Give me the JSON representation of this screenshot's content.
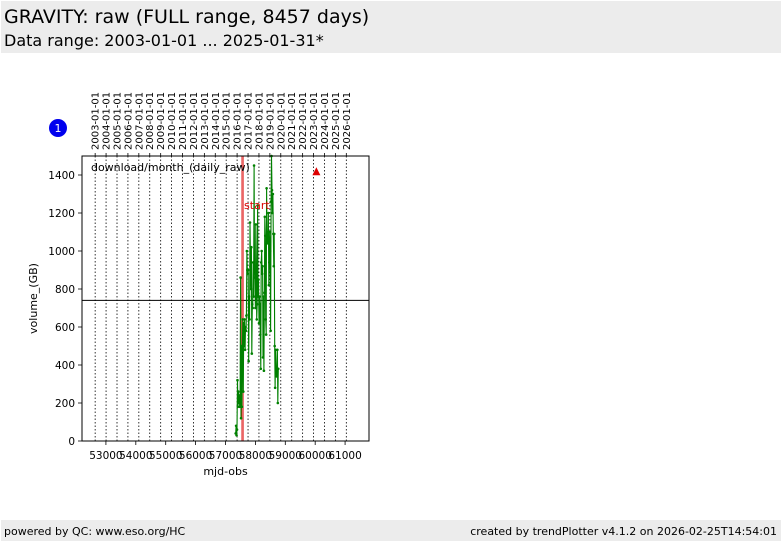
{
  "header": {
    "title": "GRAVITY: raw (FULL range, 8457 days)",
    "subtitle": "Data range: 2003-01-01 ... 2025-01-31*"
  },
  "footer": {
    "left": "powered by QC: www.eso.org/HC",
    "right": "created by trendPlotter v4.1.2 on 2026-02-25T14:54:01"
  },
  "badge": {
    "label": "1",
    "color": "#0000ee"
  },
  "chart_data": {
    "type": "line",
    "title": "",
    "xlabel": "mjd-obs",
    "ylabel": "volume_(GB)",
    "xlim": [
      52200,
      61800
    ],
    "ylim": [
      0,
      1500
    ],
    "x_ticks": [
      53000,
      54000,
      55000,
      56000,
      57000,
      58000,
      59000,
      60000,
      61000
    ],
    "x_tick_labels": [
      "53000",
      "54000",
      "55000",
      "56000",
      "57000",
      "58000",
      "59000",
      "60000",
      "61000"
    ],
    "y_ticks": [
      0,
      200,
      400,
      600,
      800,
      1000,
      1200,
      1400
    ],
    "y_tick_labels": [
      "0",
      "200",
      "400",
      "600",
      "800",
      "1000",
      "1200",
      "1400"
    ],
    "top_axis": {
      "dates": [
        "2003-01-01",
        "2004-01-01",
        "2005-01-01",
        "2006-01-01",
        "2007-01-01",
        "2008-01-01",
        "2009-01-01",
        "2010-01-01",
        "2011-01-01",
        "2012-01-01",
        "2013-01-01",
        "2014-01-01",
        "2015-01-01",
        "2016-01-01",
        "2017-01-01",
        "2018-01-01",
        "2019-01-01",
        "2020-01-01",
        "2021-01-01",
        "2022-01-01",
        "2023-01-01",
        "2024-01-01",
        "2025-01-01",
        "2026-01-01"
      ],
      "mjd": [
        52640,
        53005,
        53371,
        53736,
        54101,
        54466,
        54832,
        55197,
        55562,
        55927,
        56293,
        56658,
        57023,
        57388,
        57754,
        58119,
        58484,
        58849,
        59215,
        59580,
        59945,
        60310,
        60676,
        61041
      ]
    },
    "grid": "vertical dotted at year boundaries",
    "series": [
      {
        "name": "download/month_(daily_raw)",
        "color": "#008000",
        "points": [
          [
            57340,
            40
          ],
          [
            57355,
            80
          ],
          [
            57370,
            30
          ],
          [
            57385,
            60
          ],
          [
            57400,
            320
          ],
          [
            57415,
            180
          ],
          [
            57430,
            260
          ],
          [
            57445,
            200
          ],
          [
            57460,
            240
          ],
          [
            57475,
            180
          ],
          [
            57490,
            200
          ],
          [
            57505,
            860
          ],
          [
            57520,
            120
          ],
          [
            57535,
            500
          ],
          [
            57550,
            180
          ],
          [
            57565,
            480
          ],
          [
            57580,
            640
          ],
          [
            57595,
            260
          ],
          [
            57610,
            620
          ],
          [
            57625,
            500
          ],
          [
            57640,
            640
          ],
          [
            57655,
            480
          ],
          [
            57670,
            600
          ],
          [
            57685,
            580
          ],
          [
            57700,
            660
          ],
          [
            57715,
            1000
          ],
          [
            57730,
            900
          ],
          [
            57745,
            880
          ],
          [
            57760,
            900
          ],
          [
            57775,
            420
          ],
          [
            57790,
            760
          ],
          [
            57805,
            640
          ],
          [
            57820,
            1150
          ],
          [
            57835,
            920
          ],
          [
            57850,
            800
          ],
          [
            57865,
            1020
          ],
          [
            57880,
            460
          ],
          [
            57895,
            720
          ],
          [
            57910,
            700
          ],
          [
            57925,
            940
          ],
          [
            57940,
            760
          ],
          [
            57955,
            1450
          ],
          [
            57970,
            920
          ],
          [
            57985,
            860
          ],
          [
            58000,
            700
          ],
          [
            58015,
            1140
          ],
          [
            58030,
            920
          ],
          [
            58045,
            640
          ],
          [
            58060,
            720
          ],
          [
            58075,
            1240
          ],
          [
            58090,
            760
          ],
          [
            58105,
            850
          ],
          [
            58120,
            620
          ],
          [
            58135,
            760
          ],
          [
            58150,
            720
          ],
          [
            58165,
            560
          ],
          [
            58180,
            380
          ],
          [
            58195,
            940
          ],
          [
            58210,
            1000
          ],
          [
            58225,
            880
          ],
          [
            58240,
            920
          ],
          [
            58255,
            440
          ],
          [
            58270,
            760
          ],
          [
            58285,
            370
          ],
          [
            58300,
            780
          ],
          [
            58315,
            1180
          ],
          [
            58330,
            1080
          ],
          [
            58345,
            640
          ],
          [
            58360,
            560
          ],
          [
            58375,
            1330
          ],
          [
            58390,
            1040
          ],
          [
            58405,
            1100
          ],
          [
            58420,
            1050
          ],
          [
            58435,
            1200
          ],
          [
            58450,
            820
          ],
          [
            58465,
            940
          ],
          [
            58480,
            1100
          ],
          [
            58495,
            1000
          ],
          [
            58510,
            580
          ],
          [
            58525,
            1260
          ],
          [
            58540,
            1500
          ],
          [
            58555,
            1320
          ],
          [
            58570,
            1200
          ],
          [
            58585,
            1300
          ],
          [
            58600,
            1090
          ],
          [
            58615,
            920
          ],
          [
            58630,
            1090
          ],
          [
            58645,
            500
          ],
          [
            58660,
            280
          ],
          [
            58675,
            480
          ],
          [
            58690,
            380
          ],
          [
            58705,
            340
          ],
          [
            58720,
            360
          ],
          [
            58735,
            480
          ],
          [
            58750,
            200
          ],
          [
            58765,
            380
          ]
        ]
      }
    ],
    "reference_line": {
      "y": 740,
      "color": "#000000"
    },
    "vertical_markers": [
      {
        "x": 57550,
        "color": "#dd0000"
      },
      {
        "x": 57590,
        "color": "#dd0000"
      }
    ],
    "annotations": [
      {
        "text": "start",
        "x": 57620,
        "y": 1220,
        "color": "#dd0000"
      },
      {
        "text": "download/month_(daily_raw)",
        "x": 52500,
        "y": 1420,
        "color": "#000000"
      }
    ],
    "marker_point": {
      "x": 60040,
      "y": 1420,
      "shape": "triangle-up",
      "color": "#dd0000"
    }
  }
}
